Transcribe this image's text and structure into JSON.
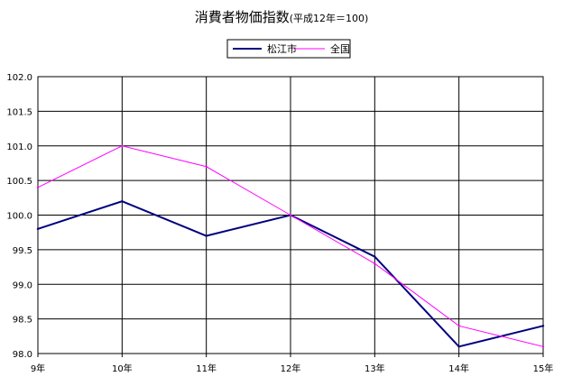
{
  "chart_data": {
    "type": "line",
    "title": "消費者物価指数",
    "subtitle": "(平成12年＝100)",
    "categories": [
      "9年",
      "10年",
      "11年",
      "12年",
      "13年",
      "14年",
      "15年"
    ],
    "series": [
      {
        "name": "松江市",
        "color": "#000080",
        "values": [
          99.8,
          100.2,
          99.7,
          100.0,
          99.4,
          98.1,
          98.4
        ]
      },
      {
        "name": "全国",
        "color": "#ff00ff",
        "values": [
          100.4,
          101.0,
          100.7,
          100.0,
          99.3,
          98.4,
          98.1
        ]
      }
    ],
    "ylim": [
      98.0,
      102.0
    ],
    "yticks": [
      "98.0",
      "98.5",
      "99.0",
      "99.5",
      "100.0",
      "100.5",
      "101.0",
      "101.5",
      "102.0"
    ],
    "ytick_values": [
      98.0,
      98.5,
      99.0,
      99.5,
      100.0,
      100.5,
      101.0,
      101.5,
      102.0
    ],
    "grid": true,
    "legend_position": "top-center"
  }
}
